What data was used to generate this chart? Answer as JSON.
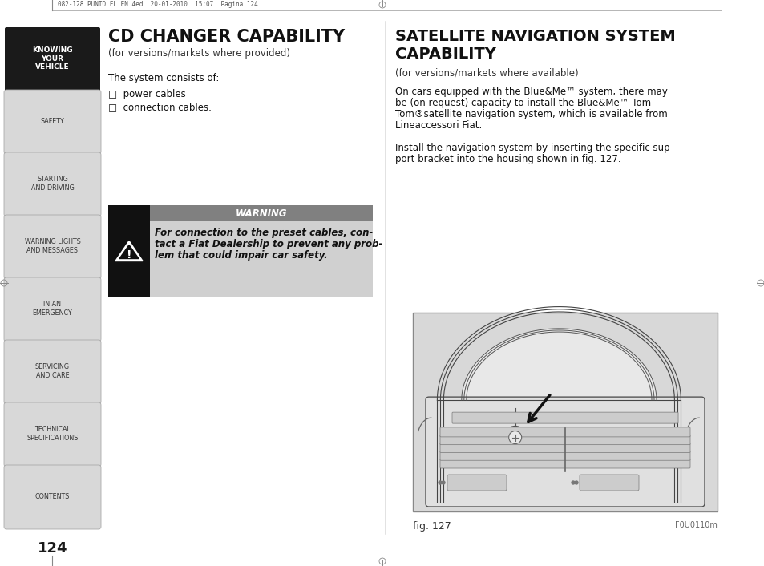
{
  "bg_color": "#ffffff",
  "sidebar_bg": "#d8d8d8",
  "sidebar_active_bg": "#1a1a1a",
  "sidebar_text_color": "#333333",
  "sidebar_active_text": "#ffffff",
  "sidebar_items": [
    "KNOWING\nYOUR\nVEHICLE",
    "SAFETY",
    "STARTING\nAND DRIVING",
    "WARNING LIGHTS\nAND MESSAGES",
    "IN AN\nEMERGENCY",
    "SERVICING\nAND CARE",
    "TECHNICAL\nSPECIFICATIONS",
    "CONTENTS"
  ],
  "page_number": "124",
  "header_text": "082-128 PUNTO FL EN 4ed  20-01-2010  15:07  Pagina 124",
  "left_title": "CD CHANGER CAPABILITY",
  "left_subtitle": "(for versions/markets where provided)",
  "left_body1": "The system consists of:",
  "left_list": [
    "□  power cables",
    "□  connection cables."
  ],
  "warning_title": "WARNING",
  "warning_line1": "For connection to the preset cables, con-",
  "warning_line2": "tact a Fiat Dealership to prevent any prob-",
  "warning_line3": "lem that could impair car safety.",
  "right_title_line1": "SATELLITE NAVIGATION SYSTEM",
  "right_title_line2": "CAPABILITY",
  "right_subtitle": "(for versions/markets where available)",
  "right_body1_line1": "On cars equipped with the Blue&Me™ system, there may",
  "right_body1_line2": "be (on request) capacity to install the Blue&Me™ Tom-",
  "right_body1_line3": "Tom®satellite navigation system, which is available from",
  "right_body1_line4": "Lineaccessori Fiat.",
  "right_body2_line1": "Install the navigation system by inserting the specific sup-",
  "right_body2_line2": "port bracket into the housing shown in fig. 127.",
  "fig_label": "fig. 127",
  "fig_code": "F0U0110m",
  "warning_bg": "#d0d0d0",
  "warning_title_bg": "#808080",
  "fig_bg": "#d8d8d8"
}
